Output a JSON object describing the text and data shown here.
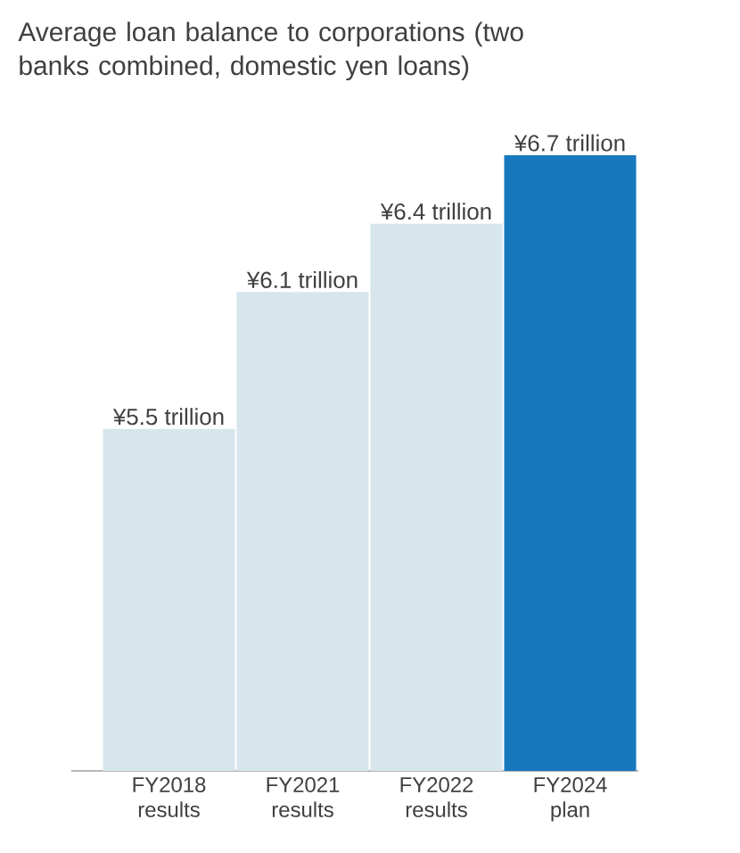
{
  "chart_data": {
    "type": "bar",
    "title": "Average loan balance to corporations (two banks combined, domestic yen loans)",
    "categories": [
      "FY2018 results",
      "FY2021 results",
      "FY2022 results",
      "FY2024 plan"
    ],
    "values": [
      5.5,
      6.1,
      6.4,
      6.7
    ],
    "value_labels": [
      "¥5.5 trillion",
      "¥6.1 trillion",
      "¥6.4 trillion",
      "¥6.7 trillion"
    ],
    "colors": [
      "#d7e5ed",
      "#d7e5ed",
      "#d7e5ed",
      "#1778be"
    ],
    "ylim": [
      4,
      6.7
    ]
  }
}
